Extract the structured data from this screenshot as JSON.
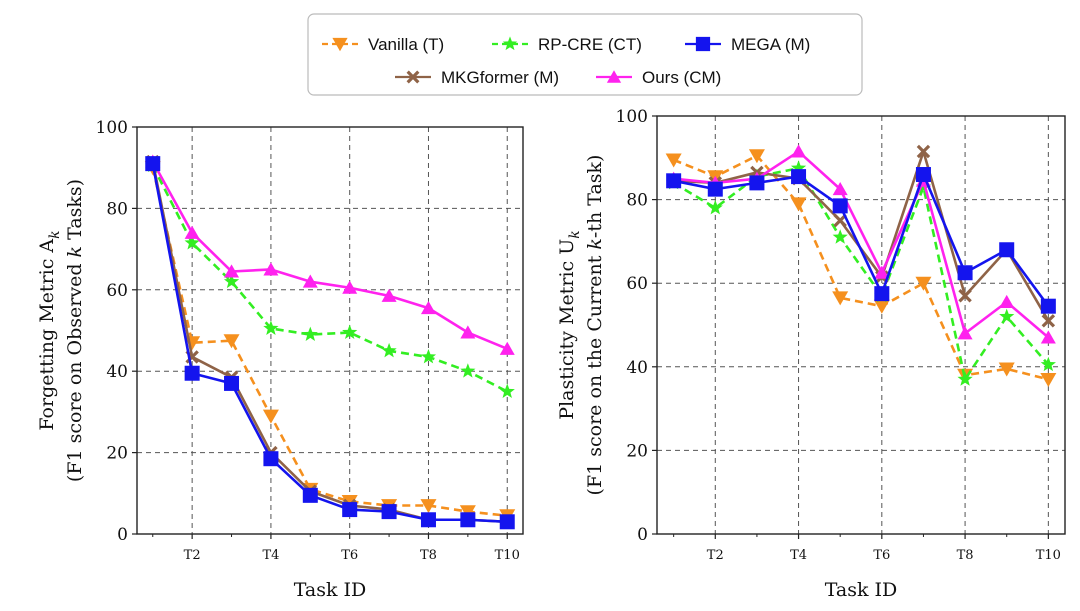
{
  "legend": {
    "entries": [
      {
        "name": "Vanilla (T)",
        "color": "#f5901e",
        "marker": "tri-down",
        "dash": true
      },
      {
        "name": "RP-CRE (CT)",
        "color": "#33ee22",
        "marker": "star",
        "dash": true
      },
      {
        "name": "MEGA (M)",
        "color": "#1414ee",
        "marker": "square",
        "dash": false
      },
      {
        "name": "MKGformer (M)",
        "color": "#8f6347",
        "marker": "x",
        "dash": false
      },
      {
        "name": "Ours (CM)",
        "color": "#ff22ee",
        "marker": "tri-up",
        "dash": false
      }
    ]
  },
  "chart_data": [
    {
      "type": "line",
      "xlabel": "Task ID",
      "ylabel_line1": "Forgetting Metric A",
      "ylabel_sub": "k",
      "ylabel_line2_parts": [
        "(F1 score on Observed ",
        "k",
        " Tasks)"
      ],
      "x": [
        1,
        2,
        3,
        4,
        5,
        6,
        7,
        8,
        9,
        10
      ],
      "xticks": [
        2,
        4,
        6,
        8,
        10
      ],
      "xtick_labels": [
        "T2",
        "T4",
        "T6",
        "T8",
        "T10"
      ],
      "xlim": [
        0.6,
        10.4
      ],
      "ylim": [
        0,
        100
      ],
      "yticks": [
        0,
        20,
        40,
        60,
        80,
        100
      ],
      "grid": true,
      "series": [
        {
          "name": "Vanilla (T)",
          "values": [
            90,
            47,
            47.5,
            29,
            11,
            8,
            7,
            7,
            5.5,
            4.5
          ]
        },
        {
          "name": "RP-CRE (CT)",
          "values": [
            90.5,
            71.5,
            62,
            50.5,
            49,
            49.5,
            45,
            43.5,
            40,
            35
          ]
        },
        {
          "name": "MKGformer (M)",
          "values": [
            91.5,
            43.5,
            38.5,
            20,
            10.5,
            7,
            6,
            3.5,
            3.5,
            3
          ]
        },
        {
          "name": "Ours (CM)",
          "values": [
            91.5,
            74,
            64.5,
            65,
            62,
            60.5,
            58.5,
            55.5,
            49.5,
            45.5
          ]
        },
        {
          "name": "MEGA (M)",
          "values": [
            91,
            39.5,
            37,
            18.5,
            9.5,
            6,
            5.5,
            3.5,
            3.5,
            3
          ]
        }
      ]
    },
    {
      "type": "line",
      "xlabel": "Task ID",
      "ylabel_line1": "Plasticity Metric U",
      "ylabel_sub": "k",
      "ylabel_line2_parts": [
        "(F1 score on the Current ",
        "k",
        "-th Task)"
      ],
      "x": [
        1,
        2,
        3,
        4,
        5,
        6,
        7,
        8,
        9,
        10
      ],
      "xticks": [
        2,
        4,
        6,
        8,
        10
      ],
      "xtick_labels": [
        "T2",
        "T4",
        "T6",
        "T8",
        "T10"
      ],
      "xlim": [
        0.6,
        10.4
      ],
      "ylim": [
        0,
        100
      ],
      "yticks": [
        0,
        20,
        40,
        60,
        80,
        100
      ],
      "grid": true,
      "series": [
        {
          "name": "Vanilla (T)",
          "values": [
            89.5,
            85.5,
            90.5,
            79,
            56.5,
            54.5,
            60,
            38,
            39.5,
            37
          ]
        },
        {
          "name": "RP-CRE (CT)",
          "values": [
            84,
            78,
            85.5,
            87.5,
            71,
            57,
            83,
            37,
            52,
            40.5
          ]
        },
        {
          "name": "MKGformer (M)",
          "values": [
            84.5,
            84,
            86.5,
            85,
            75,
            61.5,
            91.5,
            57,
            68,
            51
          ]
        },
        {
          "name": "Ours (CM)",
          "values": [
            85,
            84,
            85,
            91.5,
            82.5,
            62.5,
            84.5,
            48,
            55.5,
            47
          ]
        },
        {
          "name": "MEGA (M)",
          "values": [
            84.5,
            82.5,
            84,
            85.5,
            78.5,
            57.5,
            86,
            62.5,
            68,
            54.5
          ]
        }
      ]
    }
  ]
}
